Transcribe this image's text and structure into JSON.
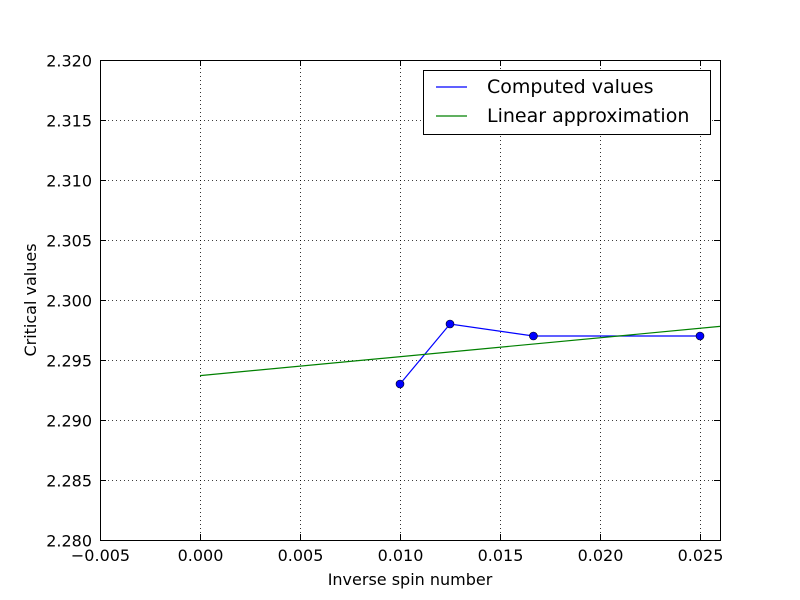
{
  "chart_data": {
    "type": "line",
    "title": "",
    "xlabel": "Inverse spin number",
    "ylabel": "Critical values",
    "xlim": [
      -0.005,
      0.026
    ],
    "ylim": [
      2.28,
      2.32
    ],
    "x_ticks": [
      -0.005,
      0.0,
      0.005,
      0.01,
      0.015,
      0.02,
      0.025
    ],
    "x_tick_labels": [
      "−0.005",
      "0.000",
      "0.005",
      "0.010",
      "0.015",
      "0.020",
      "0.025"
    ],
    "y_ticks": [
      2.28,
      2.285,
      2.29,
      2.295,
      2.3,
      2.305,
      2.31,
      2.315,
      2.32
    ],
    "y_tick_labels": [
      "2.280",
      "2.285",
      "2.290",
      "2.295",
      "2.300",
      "2.305",
      "2.310",
      "2.315",
      "2.320"
    ],
    "grid": true,
    "legend_position": "top-right",
    "series": [
      {
        "name": "Computed values",
        "color": "#0000ff",
        "markers": true,
        "x": [
          0.01,
          0.0125,
          0.01667,
          0.025
        ],
        "y": [
          2.293,
          2.298,
          2.297,
          2.297
        ]
      },
      {
        "name": "Linear approximation",
        "color": "#008000",
        "markers": false,
        "x": [
          0.0,
          0.026
        ],
        "y": [
          2.2937,
          2.2978
        ]
      }
    ]
  }
}
